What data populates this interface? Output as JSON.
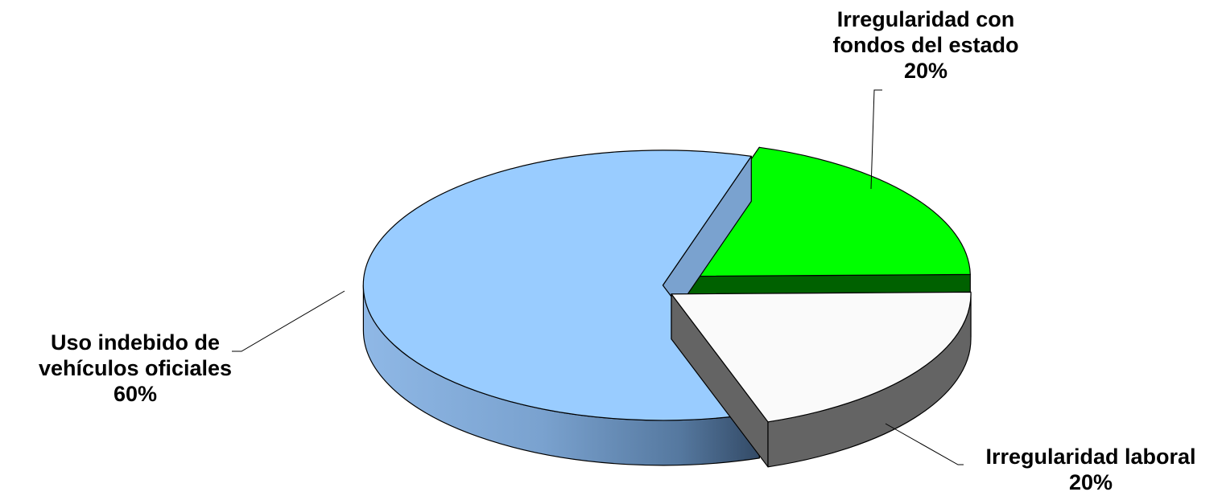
{
  "chart_data": {
    "type": "pie",
    "title": "",
    "slices": [
      {
        "label_lines": [
          "Irregularidad con",
          "fondos del estado"
        ],
        "value": 20,
        "value_label": "20%",
        "color": "#00FF00"
      },
      {
        "label_lines": [
          "Irregularidad laboral"
        ],
        "value": 20,
        "value_label": "20%",
        "color": "#FAFAFA"
      },
      {
        "label_lines": [
          "Uso indebido de",
          "vehículos oficiales"
        ],
        "value": 60,
        "value_label": "60%",
        "color": "#99CCFF"
      }
    ],
    "style": "3d-exploded",
    "legend": "none"
  }
}
